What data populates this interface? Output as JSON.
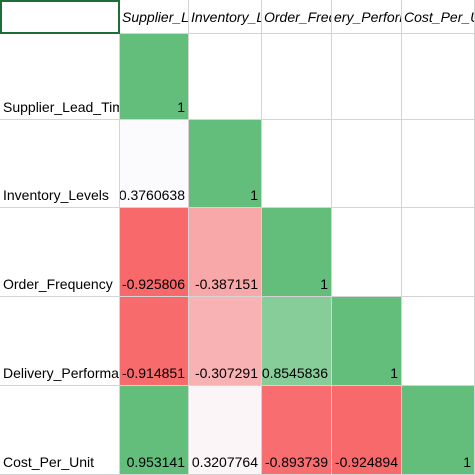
{
  "columns": [
    "Supplier_Lead_T",
    "Inventory_Leve",
    "Order_Frequen",
    "ery_Performan",
    "Cost_Per_Unit"
  ],
  "rows": [
    {
      "label": "Supplier_Lead_Time",
      "cells": [
        {
          "text": "1",
          "color": "#63be7b"
        },
        {
          "text": "",
          "color": "#ffffff"
        },
        {
          "text": "",
          "color": "#ffffff"
        },
        {
          "text": "",
          "color": "#ffffff"
        },
        {
          "text": "",
          "color": "#ffffff"
        }
      ]
    },
    {
      "label": "Inventory_Levels",
      "cells": [
        {
          "text": "0.3760638",
          "color": "#fbfbfe"
        },
        {
          "text": "1",
          "color": "#63be7b"
        },
        {
          "text": "",
          "color": "#ffffff"
        },
        {
          "text": "",
          "color": "#ffffff"
        },
        {
          "text": "",
          "color": "#ffffff"
        }
      ]
    },
    {
      "label": "Order_Frequency",
      "cells": [
        {
          "text": "-0.925806",
          "color": "#f8696b"
        },
        {
          "text": "-0.387151",
          "color": "#f9a8aa"
        },
        {
          "text": "1",
          "color": "#63be7b"
        },
        {
          "text": "",
          "color": "#ffffff"
        },
        {
          "text": "",
          "color": "#ffffff"
        }
      ]
    },
    {
      "label": "Delivery_Performance",
      "cells": [
        {
          "text": "-0.914851",
          "color": "#f86b6d"
        },
        {
          "text": "-0.307291",
          "color": "#f9b2b4"
        },
        {
          "text": "0.8545836",
          "color": "#86cd99"
        },
        {
          "text": "1",
          "color": "#63be7b"
        },
        {
          "text": "",
          "color": "#ffffff"
        }
      ]
    },
    {
      "label": "Cost_Per_Unit",
      "cells": [
        {
          "text": "0.953141",
          "color": "#63be7b"
        },
        {
          "text": "0.3207764",
          "color": "#fcf5f7"
        },
        {
          "text": "-0.893739",
          "color": "#f86e70"
        },
        {
          "text": "-0.924894",
          "color": "#f8696b"
        },
        {
          "text": "1",
          "color": "#63be7b"
        }
      ]
    }
  ]
}
